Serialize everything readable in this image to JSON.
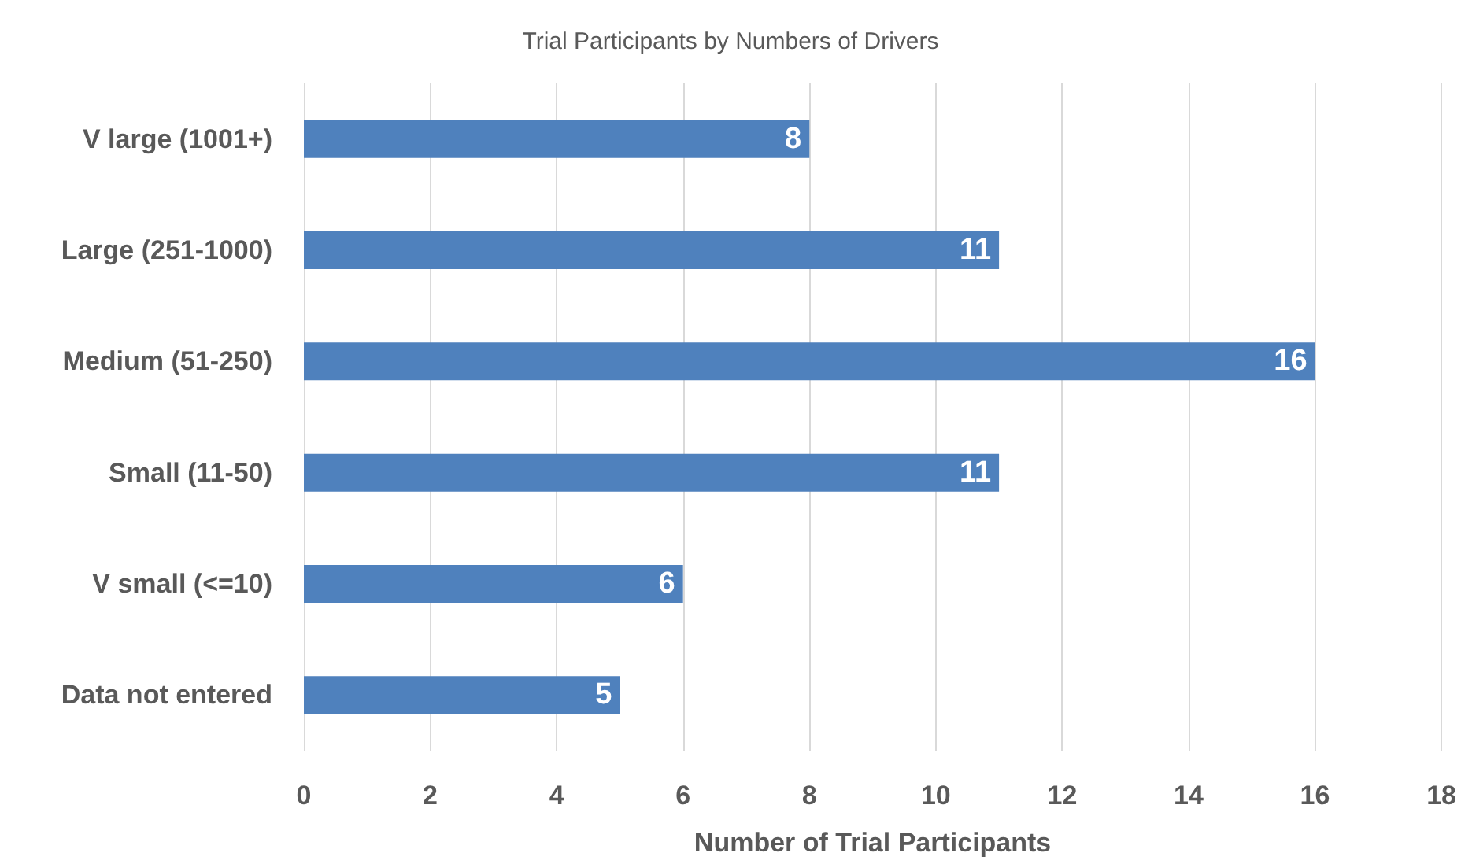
{
  "chart_data": {
    "type": "bar",
    "orientation": "horizontal",
    "title": "Trial Participants by Numbers of Drivers",
    "xlabel": "Number of Trial Participants",
    "categories": [
      "V large (1001+)",
      "Large (251-1000)",
      "Medium (51-250)",
      "Small (11-50)",
      "V small (<=10)",
      "Data not entered"
    ],
    "values": [
      8,
      11,
      16,
      11,
      6,
      5
    ],
    "color": "#4f81bd",
    "data_labels": true,
    "xlim": [
      0,
      18
    ],
    "xticks": [
      0,
      2,
      4,
      6,
      8,
      10,
      12,
      14,
      16,
      18
    ],
    "grid": "x"
  }
}
